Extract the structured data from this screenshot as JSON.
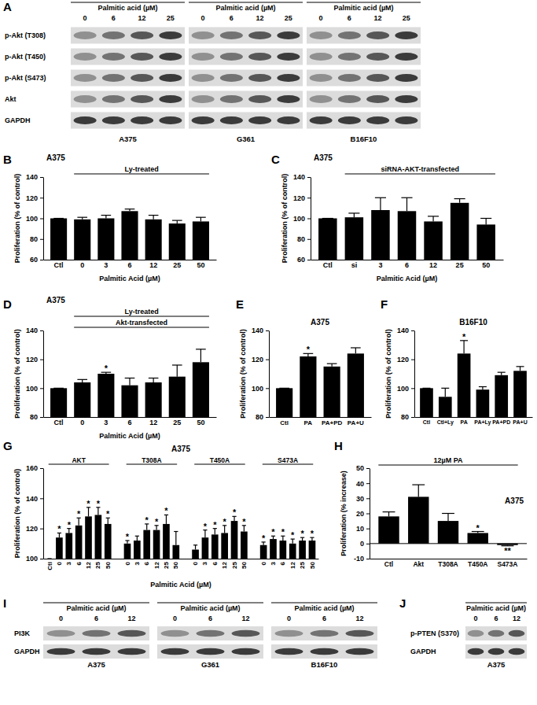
{
  "chart_data": [
    {
      "panel": "B",
      "type": "bar",
      "title": "A375",
      "annotations": [
        "Ly-treated"
      ],
      "categories": [
        "Ctl",
        "0",
        "3",
        "6",
        "12",
        "25",
        "50"
      ],
      "values": [
        100,
        99,
        100,
        107,
        99,
        95,
        97
      ],
      "errors": [
        0,
        2,
        3,
        2,
        4,
        3,
        4
      ],
      "significance": [
        null,
        null,
        null,
        null,
        null,
        null,
        null
      ],
      "color": "#000000",
      "xlabel": "Palmitic Acid (µM)",
      "ylabel": "Proliferation (% of control)",
      "ylim": [
        60,
        140
      ],
      "yticks": [
        60,
        80,
        100,
        120,
        140
      ]
    },
    {
      "panel": "C",
      "type": "bar",
      "title": "A375",
      "annotations": [
        "siRNA-AKT-transfected"
      ],
      "categories": [
        "Ctl",
        "si",
        "3",
        "6",
        "12",
        "25",
        "50"
      ],
      "values": [
        100,
        101,
        108,
        107,
        97,
        115,
        94
      ],
      "errors": [
        0,
        4,
        12,
        13,
        5,
        4,
        6
      ],
      "significance": [
        null,
        null,
        null,
        null,
        null,
        null,
        null
      ],
      "color": "#000000",
      "xlabel": "Palmitic Acid (µM)",
      "ylabel": "Proliferation (% of control)",
      "ylim": [
        60,
        140
      ],
      "yticks": [
        60,
        80,
        100,
        120,
        140
      ]
    },
    {
      "panel": "D",
      "type": "bar",
      "title": "A375",
      "annotations": [
        "Ly-treated",
        "Akt-transfected"
      ],
      "categories": [
        "Ctl",
        "0",
        "3",
        "6",
        "12",
        "25",
        "50"
      ],
      "values": [
        100,
        104,
        110,
        102,
        104,
        108,
        118
      ],
      "errors": [
        0,
        2,
        1,
        5,
        3,
        8,
        9
      ],
      "significance": [
        null,
        null,
        "*",
        null,
        null,
        null,
        null
      ],
      "color": "#000000",
      "xlabel": "Palmitic Acid (µM)",
      "ylabel": "Proliferation (% of control)",
      "ylim": [
        80,
        140
      ],
      "yticks": [
        80,
        100,
        120,
        140
      ]
    },
    {
      "panel": "E",
      "type": "bar",
      "title": "A375",
      "categories": [
        "Ctl",
        "PA",
        "PA+PD",
        "PA+U"
      ],
      "values": [
        100,
        122,
        115,
        124
      ],
      "errors": [
        0,
        2,
        2,
        4
      ],
      "significance": [
        null,
        "*",
        null,
        null
      ],
      "color": "#000000",
      "ylabel": "Proliferation (% of control)",
      "ylim": [
        80,
        140
      ],
      "yticks": [
        80,
        100,
        120,
        140
      ]
    },
    {
      "panel": "F",
      "type": "bar",
      "title": "B16F10",
      "categories": [
        "Ctl",
        "Ctl+Ly",
        "PA",
        "PA+Ly",
        "PA+PD",
        "PA+U"
      ],
      "values": [
        100,
        94,
        124,
        99,
        109,
        112
      ],
      "errors": [
        0,
        6,
        9,
        2,
        2,
        3
      ],
      "significance": [
        null,
        null,
        "*",
        null,
        null,
        null
      ],
      "color": "#000000",
      "ylabel": "Proliferation (% of control)",
      "ylim": [
        80,
        140
      ],
      "yticks": [
        80,
        100,
        120,
        140
      ]
    },
    {
      "panel": "G",
      "type": "bar",
      "title": "A375",
      "series": [
        {
          "name": "AKT",
          "categories": [
            "Ctl",
            "0",
            "3",
            "6",
            "12",
            "25",
            "50"
          ],
          "values": [
            100,
            114,
            117,
            122,
            128,
            129,
            123
          ],
          "errors": [
            0,
            3,
            3,
            5,
            6,
            5,
            4
          ],
          "significance": [
            null,
            "*",
            "*",
            "*",
            "*",
            "*",
            "*"
          ]
        },
        {
          "name": "T308A",
          "categories": [
            "0",
            "3",
            "6",
            "12",
            "25",
            "50"
          ],
          "values": [
            110,
            112,
            119,
            119,
            123,
            109
          ],
          "errors": [
            2,
            3,
            4,
            3,
            6,
            9
          ],
          "significance": [
            "*",
            null,
            "*",
            "*",
            "*",
            null
          ]
        },
        {
          "name": "T450A",
          "categories": [
            "0",
            "3",
            "6",
            "12",
            "25",
            "50"
          ],
          "values": [
            106,
            114,
            116,
            117,
            125,
            118
          ],
          "errors": [
            3,
            5,
            4,
            5,
            3,
            4
          ],
          "significance": [
            null,
            "*",
            "*",
            "*",
            "*",
            "*"
          ]
        },
        {
          "name": "S473A",
          "categories": [
            "0",
            "3",
            "6",
            "12",
            "25",
            "50"
          ],
          "values": [
            109,
            113,
            112,
            110,
            112,
            112
          ],
          "errors": [
            2,
            2,
            3,
            3,
            2,
            2
          ],
          "significance": [
            "*",
            "*",
            "*",
            "*",
            "*",
            "*"
          ]
        }
      ],
      "color": "#000000",
      "xlabel": "Palmitic Acid (µM)",
      "ylabel": "Proliferation (% of control)",
      "ylim": [
        100,
        160
      ],
      "yticks": [
        100,
        120,
        140,
        160
      ]
    },
    {
      "panel": "H",
      "type": "bar",
      "title": "A375",
      "annotations": [
        "12µM PA"
      ],
      "categories": [
        "Ctl",
        "Akt",
        "T308A",
        "T450A",
        "S473A"
      ],
      "values": [
        18,
        31,
        15,
        7,
        -1
      ],
      "errors": [
        3,
        8,
        5,
        1,
        0.5
      ],
      "significance": [
        null,
        null,
        null,
        "*",
        "**"
      ],
      "color": "#000000",
      "ylabel": "Proliferation (% increase)",
      "ylim": [
        -10,
        50
      ],
      "yticks": [
        -10,
        0,
        10,
        20,
        30,
        40,
        50
      ]
    }
  ],
  "blots": [
    {
      "panel": "A",
      "title": "Palmitic acid (µM)",
      "doses": [
        0,
        6,
        12,
        25
      ],
      "rows": [
        "p-Akt (T308)",
        "p-Akt (T450)",
        "p-Akt (S473)",
        "Akt",
        "GAPDH"
      ],
      "cell_lines": [
        "A375",
        "G361",
        "B16F10"
      ]
    },
    {
      "panel": "I",
      "title": "Palmitic acid (µM)",
      "doses": [
        0,
        6,
        12
      ],
      "rows": [
        "PI3K",
        "GAPDH"
      ],
      "cell_lines": [
        "A375",
        "G361",
        "B16F10"
      ]
    },
    {
      "panel": "J",
      "title": "Palmitic acid (µM)",
      "doses": [
        0,
        6,
        12
      ],
      "rows": [
        "p-PTEN (S370)",
        "GAPDH"
      ],
      "cell_lines": [
        "A375"
      ]
    }
  ]
}
